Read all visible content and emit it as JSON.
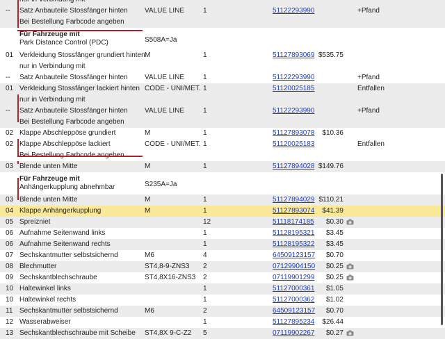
{
  "rows": [
    {
      "type": "cont",
      "no": "",
      "desc": "nur in Verbindung mit",
      "bg": "alt"
    },
    {
      "type": "item",
      "no": "--",
      "desc": "Satz Anbauteile Stossfänger hinten",
      "sup": "VALUE LINE",
      "qty": "1",
      "pn": "51122293990",
      "price": "",
      "note": "+Pfand",
      "bg": "alt"
    },
    {
      "type": "cont",
      "no": "",
      "desc": "Bei Bestellung Farbcode angeben",
      "bg": "alt"
    },
    {
      "type": "hdr",
      "title": "Für Fahrzeuge mit",
      "desc": "Park Distance Control (PDC)",
      "sup": "S508A=Ja"
    },
    {
      "type": "item",
      "no": "01",
      "desc": "Verkleidung Stossfänger grundiert hinten",
      "sup": "M",
      "qty": "1",
      "pn": "51127893069",
      "price": "$535.75",
      "note": "",
      "bg": "white"
    },
    {
      "type": "cont",
      "no": "",
      "desc": "nur in Verbindung mit",
      "bg": "white"
    },
    {
      "type": "item",
      "no": "--",
      "desc": "Satz Anbauteile Stossfänger hinten",
      "sup": "VALUE LINE",
      "qty": "1",
      "pn": "51122293990",
      "price": "",
      "note": "+Pfand",
      "bg": "white"
    },
    {
      "type": "item",
      "no": "01",
      "desc": "Verkleidung Stossfänger lackiert hinten",
      "sup": "CODE - UNI/MET.",
      "qty": "1",
      "pn": "51120025185",
      "price": "",
      "note": "Entfallen",
      "bg": "alt"
    },
    {
      "type": "cont",
      "no": "",
      "desc": "nur in Verbindung mit",
      "bg": "alt"
    },
    {
      "type": "item",
      "no": "--",
      "desc": "Satz Anbauteile Stossfänger hinten",
      "sup": "VALUE LINE",
      "qty": "1",
      "pn": "51122293990",
      "price": "",
      "note": "+Pfand",
      "bg": "alt"
    },
    {
      "type": "cont",
      "no": "",
      "desc": "Bei Bestellung Farbcode angeben",
      "bg": "alt"
    },
    {
      "type": "item",
      "no": "02",
      "desc": "Klappe Abschleppöse grundiert",
      "sup": "M",
      "qty": "1",
      "pn": "51127893078",
      "price": "$10.36",
      "note": "",
      "bg": "white"
    },
    {
      "type": "item",
      "no": "02",
      "desc": "Klappe Abschleppöse lackiert",
      "sup": "CODE - UNI/MET.",
      "qty": "1",
      "pn": "51120025183",
      "price": "",
      "note": "Entfallen",
      "bg": "white"
    },
    {
      "type": "cont",
      "no": "",
      "desc": "Bei Bestellung Farbcode angeben",
      "bg": "white"
    },
    {
      "type": "item",
      "no": "03",
      "desc": "Blende unten Mitte",
      "sup": "M",
      "qty": "1",
      "pn": "51127894028",
      "price": "$149.76",
      "note": "",
      "bg": "alt"
    },
    {
      "type": "hdr",
      "title": "Für Fahrzeuge mit",
      "desc": "Anhängerkupplung abnehmbar",
      "sup": "S235A=Ja"
    },
    {
      "type": "item",
      "no": "03",
      "desc": "Blende unten Mitte",
      "sup": "M",
      "qty": "1",
      "pn": "51127894029",
      "price": "$110.21",
      "note": "",
      "bg": "alt"
    },
    {
      "type": "item",
      "no": "04",
      "desc": "Klappe Anhängerkupplung",
      "sup": "M",
      "qty": "1",
      "pn": "51127893074",
      "price": "$41.39",
      "note": "",
      "bg": "hl"
    },
    {
      "type": "item",
      "no": "05",
      "desc": "Spreizniet",
      "sup": "",
      "qty": "12",
      "pn": "51118174185",
      "price": "$0.30",
      "note": "",
      "bg": "alt",
      "cam": true
    },
    {
      "type": "item",
      "no": "06",
      "desc": "Aufnahme Seitenwand links",
      "sup": "",
      "qty": "1",
      "pn": "51128195321",
      "price": "$3.45",
      "note": "",
      "bg": "white"
    },
    {
      "type": "item",
      "no": "06",
      "desc": "Aufnahme Seitenwand rechts",
      "sup": "",
      "qty": "1",
      "pn": "51128195322",
      "price": "$3.45",
      "note": "",
      "bg": "alt"
    },
    {
      "type": "item",
      "no": "07",
      "desc": "Sechskantmutter selbstsichernd",
      "sup": "M6",
      "qty": "4",
      "pn": "64509123157",
      "price": "$0.70",
      "note": "",
      "bg": "white"
    },
    {
      "type": "item",
      "no": "08",
      "desc": "Blechmutter",
      "sup": "ST4,8-9-ZNS3",
      "qty": "2",
      "pn": "07129904150",
      "price": "$0.25",
      "note": "",
      "bg": "alt",
      "cam": true
    },
    {
      "type": "item",
      "no": "09",
      "desc": "Sechskantblechschraube",
      "sup": "ST4,8X16-ZNS3",
      "qty": "2",
      "pn": "07119901299",
      "price": "$0.25",
      "note": "",
      "bg": "white",
      "cam": true
    },
    {
      "type": "item",
      "no": "10",
      "desc": "Haltewinkel links",
      "sup": "",
      "qty": "1",
      "pn": "51127000361",
      "price": "$1.05",
      "note": "",
      "bg": "alt"
    },
    {
      "type": "item",
      "no": "10",
      "desc": "Haltewinkel rechts",
      "sup": "",
      "qty": "1",
      "pn": "51127000362",
      "price": "$1.02",
      "note": "",
      "bg": "white"
    },
    {
      "type": "item",
      "no": "11",
      "desc": "Sechskantmutter selbstsichernd",
      "sup": "M6",
      "qty": "2",
      "pn": "64509123157",
      "price": "$0.70",
      "note": "",
      "bg": "alt"
    },
    {
      "type": "item",
      "no": "12",
      "desc": "Wasserabweiser",
      "sup": "",
      "qty": "1",
      "pn": "51127895234",
      "price": "$26.44",
      "note": "",
      "bg": "white"
    },
    {
      "type": "item",
      "no": "13",
      "desc": "Sechskantblechschraube mit Scheibe",
      "sup": "ST4,8X 9-C-Z2",
      "qty": "5",
      "pn": "07119902267",
      "price": "$0.27",
      "note": "",
      "bg": "alt",
      "cam": true
    }
  ]
}
